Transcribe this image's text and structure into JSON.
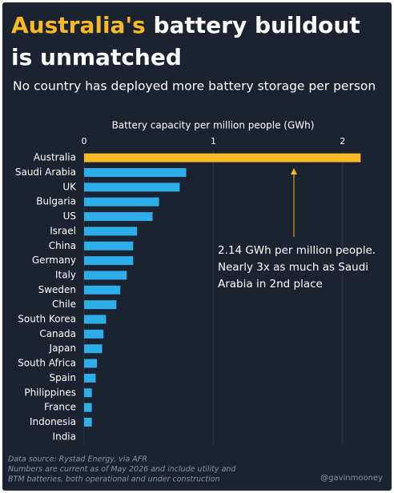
{
  "chart_data": {
    "type": "barh",
    "title_highlight": "Australia's",
    "title": "battery buildout is unmatched",
    "subtitle": "No country has deployed more battery storage per person",
    "x_label": "Battery capacity per million people (GWh)",
    "categories": [
      "Australia",
      "Saudi Arabia",
      "UK",
      "Bulgaria",
      "US",
      "Israel",
      "China",
      "Germany",
      "Italy",
      "Sweden",
      "Chile",
      "South Korea",
      "Canada",
      "Japan",
      "South Africa",
      "Spain",
      "Philippines",
      "France",
      "Indonesia",
      "India"
    ],
    "values": [
      2.14,
      0.79,
      0.74,
      0.58,
      0.53,
      0.41,
      0.38,
      0.38,
      0.33,
      0.28,
      0.25,
      0.17,
      0.15,
      0.14,
      0.1,
      0.09,
      0.06,
      0.06,
      0.06,
      0
    ],
    "colors": [
      "#f7b924",
      "#2eaee8",
      "#2eaee8",
      "#2eaee8",
      "#2eaee8",
      "#2eaee8",
      "#2eaee8",
      "#2eaee8",
      "#2eaee8",
      "#2eaee8",
      "#2eaee8",
      "#2eaee8",
      "#2eaee8",
      "#2eaee8",
      "#2eaee8",
      "#2eaee8",
      "#2eaee8",
      "#2eaee8",
      "#2eaee8",
      "#2eaee8"
    ],
    "xlim": [
      0,
      2.2
    ],
    "xticks": [
      0,
      1,
      2
    ],
    "grid": true,
    "annotation": [
      "2.14 GWh per million people.",
      "Nearly 3x as much as Saudi",
      "Arabia in 2nd place"
    ],
    "source": [
      "Data source: Rystad Energy, via AFR",
      "Numbers are current as of May 2026 and include utility and",
      "BTM batteries, both operational and under construction"
    ],
    "credit": "@gavinmooney"
  }
}
